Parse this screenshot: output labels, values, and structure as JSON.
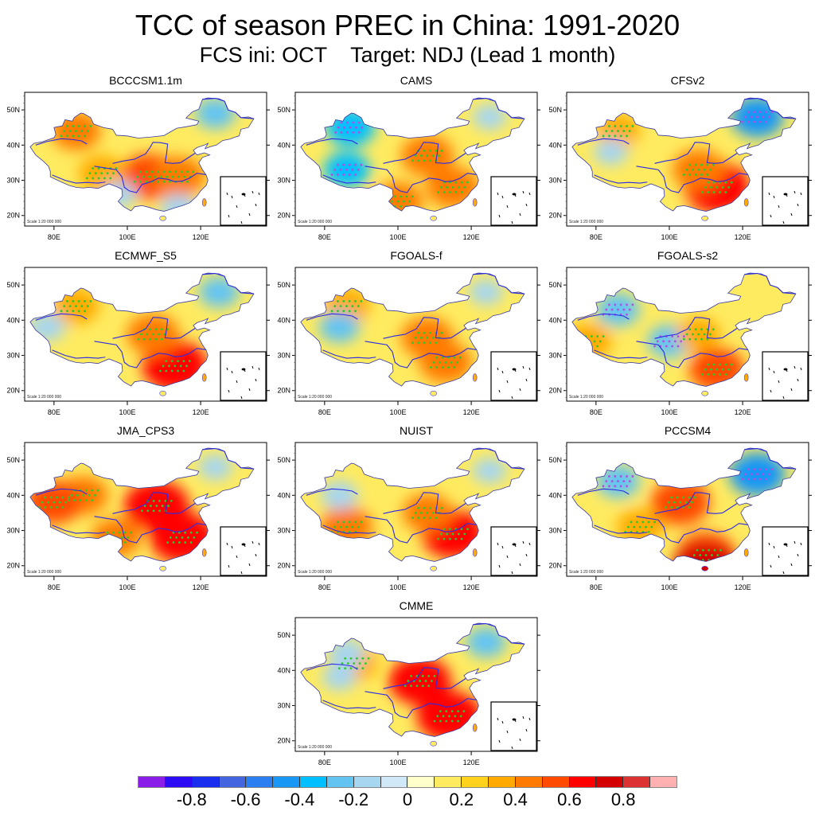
{
  "title": "TCC of season PREC in China: 1991-2020",
  "subtitle": "FCS ini: OCT    Target: NDJ (Lead 1 month)",
  "chart_data": {
    "type": "heatmap",
    "title": "TCC of season PREC in China: 1991-2020",
    "subtitle": "FCS ini: OCT    Target: NDJ (Lead 1 month)",
    "variable": "Temporal correlation coefficient (TCC) of seasonal precipitation",
    "region": "China",
    "x_axis": {
      "range": [
        72,
        138
      ],
      "ticks": [
        80,
        100,
        120
      ],
      "tick_labels": [
        "80E",
        "100E",
        "120E"
      ]
    },
    "y_axis": {
      "range": [
        17,
        55
      ],
      "ticks": [
        20,
        30,
        40,
        50
      ],
      "tick_labels": [
        "20N",
        "30N",
        "40N",
        "50N"
      ]
    },
    "scale_annotation": "Scale 1:20 000 000",
    "inset": "South China Sea islands",
    "stippling": "green dots = significant positive TCC; purple dots = significant negative TCC",
    "panels": [
      {
        "name": "BCCCSM1.1m",
        "summary": "positive over Xinjiang north, Yangtze/Sichuan-central; negative in NE and south",
        "hotspots": [
          {
            "lon": 106,
            "lat": 31,
            "v": 0.55
          },
          {
            "lon": 114,
            "lat": 31,
            "v": 0.45
          },
          {
            "lon": 86,
            "lat": 44,
            "v": 0.4
          },
          {
            "lon": 93,
            "lat": 32,
            "v": 0.35
          },
          {
            "lon": 124,
            "lat": 49,
            "v": -0.25
          },
          {
            "lon": 114,
            "lat": 22,
            "v": -0.2
          },
          {
            "lon": 98,
            "lat": 26,
            "v": -0.15
          }
        ]
      },
      {
        "name": "CAMS",
        "summary": "negative in western Xinjiang and Tibet; positive over Loess plateau and SE China",
        "hotspots": [
          {
            "lon": 87,
            "lat": 45,
            "v": -0.4
          },
          {
            "lon": 86,
            "lat": 33,
            "v": -0.35
          },
          {
            "lon": 108,
            "lat": 37,
            "v": 0.45
          },
          {
            "lon": 115,
            "lat": 28,
            "v": 0.45
          },
          {
            "lon": 100,
            "lat": 24,
            "v": 0.4
          },
          {
            "lon": 125,
            "lat": 48,
            "v": -0.15
          }
        ]
      },
      {
        "name": "CFSv2",
        "summary": "strong positive over SE China; negative in NE China",
        "hotspots": [
          {
            "lon": 113,
            "lat": 28,
            "v": 0.65
          },
          {
            "lon": 108,
            "lat": 33,
            "v": 0.45
          },
          {
            "lon": 124,
            "lat": 48,
            "v": -0.45
          },
          {
            "lon": 86,
            "lat": 44,
            "v": 0.3
          },
          {
            "lon": 84,
            "lat": 38,
            "v": -0.15
          }
        ]
      },
      {
        "name": "ECMWF_S5",
        "summary": "strong positive over SE China; positive north-central; negative NE",
        "hotspots": [
          {
            "lon": 113,
            "lat": 27,
            "v": 0.65
          },
          {
            "lon": 107,
            "lat": 36,
            "v": 0.45
          },
          {
            "lon": 86,
            "lat": 44,
            "v": 0.35
          },
          {
            "lon": 125,
            "lat": 48,
            "v": -0.25
          },
          {
            "lon": 78,
            "lat": 38,
            "v": -0.2
          }
        ]
      },
      {
        "name": "FGOALS-f",
        "summary": "positive over central China and Xinjiang",
        "hotspots": [
          {
            "lon": 108,
            "lat": 35,
            "v": 0.45
          },
          {
            "lon": 113,
            "lat": 28,
            "v": 0.45
          },
          {
            "lon": 86,
            "lat": 44,
            "v": 0.35
          },
          {
            "lon": 84,
            "lat": 38,
            "v": -0.25
          },
          {
            "lon": 124,
            "lat": 48,
            "v": -0.15
          }
        ]
      },
      {
        "name": "FGOALS-s2",
        "summary": "negative over west and north; positive over SE China",
        "hotspots": [
          {
            "lon": 86,
            "lat": 43,
            "v": -0.3
          },
          {
            "lon": 100,
            "lat": 34,
            "v": -0.3
          },
          {
            "lon": 113,
            "lat": 26,
            "v": 0.5
          },
          {
            "lon": 108,
            "lat": 36,
            "v": 0.3
          },
          {
            "lon": 78,
            "lat": 34,
            "v": 0.35
          }
        ]
      },
      {
        "name": "JMA_CPS3",
        "summary": "strong positive over north-central and SE China",
        "hotspots": [
          {
            "lon": 108,
            "lat": 37,
            "v": 0.65
          },
          {
            "lon": 115,
            "lat": 28,
            "v": 0.65
          },
          {
            "lon": 88,
            "lat": 40,
            "v": 0.4
          },
          {
            "lon": 80,
            "lat": 38,
            "v": 0.5
          },
          {
            "lon": 97,
            "lat": 28,
            "v": 0.4
          },
          {
            "lon": 124,
            "lat": 48,
            "v": -0.15
          }
        ]
      },
      {
        "name": "NUIST",
        "summary": "strong positive over SE China; positive Tibet south",
        "hotspots": [
          {
            "lon": 115,
            "lat": 29,
            "v": 0.6
          },
          {
            "lon": 108,
            "lat": 35,
            "v": 0.4
          },
          {
            "lon": 86,
            "lat": 31,
            "v": 0.45
          },
          {
            "lon": 84,
            "lat": 40,
            "v": -0.2
          },
          {
            "lon": 125,
            "lat": 47,
            "v": -0.15
          }
        ]
      },
      {
        "name": "PCCSM4",
        "summary": "negative in NE China and Xinjiang north; positive north-central and south coast",
        "hotspots": [
          {
            "lon": 124,
            "lat": 46,
            "v": -0.5
          },
          {
            "lon": 86,
            "lat": 44,
            "v": -0.3
          },
          {
            "lon": 103,
            "lat": 38,
            "v": 0.55
          },
          {
            "lon": 110,
            "lat": 23,
            "v": 0.55
          },
          {
            "lon": 110,
            "lat": 19,
            "v": 0.7
          },
          {
            "lon": 92,
            "lat": 31,
            "v": 0.35
          }
        ]
      },
      {
        "name": "CMME",
        "summary": "multi-model ensemble: strong positive over north-central and SE China; negative NE",
        "hotspots": [
          {
            "lon": 106,
            "lat": 37,
            "v": 0.6
          },
          {
            "lon": 114,
            "lat": 27,
            "v": 0.65
          },
          {
            "lon": 88,
            "lat": 42,
            "v": 0.35
          },
          {
            "lon": 124,
            "lat": 48,
            "v": -0.25
          },
          {
            "lon": 86,
            "lat": 45,
            "v": -0.2
          },
          {
            "lon": 84,
            "lat": 38,
            "v": -0.15
          }
        ]
      }
    ],
    "colorbar": {
      "levels": [
        -0.9,
        -0.8,
        -0.7,
        -0.6,
        -0.5,
        -0.4,
        -0.3,
        -0.2,
        -0.1,
        0,
        0.1,
        0.2,
        0.3,
        0.4,
        0.5,
        0.6,
        0.7,
        0.8,
        0.9
      ],
      "tick_labels": [
        "-0.8",
        "-0.6",
        "-0.4",
        "-0.2",
        "0",
        "0.2",
        "0.4",
        "0.6",
        "0.8"
      ],
      "colors": [
        "#8a1ee8",
        "#2d0bf5",
        "#1a2ef0",
        "#4366e0",
        "#2b7ff0",
        "#1997f5",
        "#00bfff",
        "#63c4f2",
        "#a6d6f0",
        "#d0e8f7",
        "#ffffcc",
        "#ffeb60",
        "#ffd21e",
        "#ffaa00",
        "#ff7a00",
        "#ff4a00",
        "#ff0000",
        "#d40000",
        "#dc3232",
        "#ffb0b0"
      ]
    }
  },
  "labels": {
    "x_ticks": [
      "80E",
      "100E",
      "120E"
    ],
    "y_ticks": [
      "20N",
      "30N",
      "40N",
      "50N"
    ],
    "scale": "Scale 1:20 000 000"
  }
}
